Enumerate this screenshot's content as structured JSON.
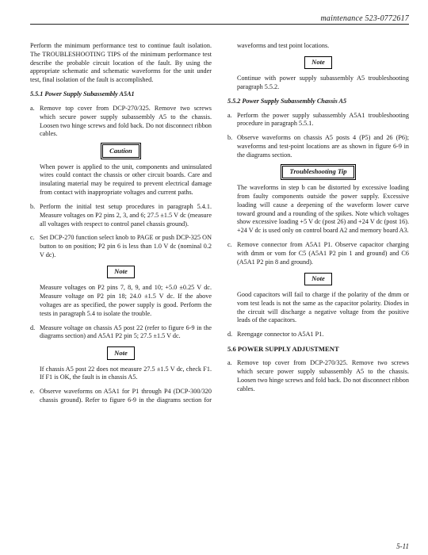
{
  "header": "maintenance 523-0772617",
  "page_number": "5-11",
  "intro": "Perform the minimum performance test to continue fault isolation. The TROUBLESHOOTING TIPS of the minimum performance test describe the probable circuit location of the fault. By using the appropriate schematic and schematic waveforms for the unit under test, final isolation of the fault is accomplished.",
  "sec551": {
    "title": "5.5.1 Power Supply Subassembly A5A1",
    "a": "Remove top cover from DCP-270/325. Remove two screws which secure power supply subassembly A5 to the chassis. Loosen two hinge screws and fold back. Do not disconnect ribbon cables.",
    "caution_label": "Caution",
    "caution_text": "When power is applied to the unit, components and uninsulated wires could contact the chassis or other circuit boards. Care and insulating material may be required to prevent electrical damage from contact with inappropriate voltages and current paths.",
    "b": "Perform the initial test setup procedures in paragraph 5.4.1. Measure voltages on P2 pins 2, 3, and 6; 27.5 ±1.5 V dc (measure all voltages with respect to control panel chassis ground).",
    "c": "Set DCP-270 function select knob to PAGE or push DCP-325 ON button to on position; P2 pin 6 is less than 1.0 V dc (nominal 0.2 V dc).",
    "note1_label": "Note",
    "note1_text": "Measure voltages on P2 pins 7, 8, 9, and 10; +5.0 ±0.25 V dc. Measure voltage on P2 pin 18; 24.0 ±1.5 V dc. If the above voltages are as specified, the power supply is good. Perform the tests in paragraph 5.4 to isolate the trouble.",
    "d": "Measure voltage on chassis A5 post 22 (refer to figure 6-9 in the diagrams section) and A5A1 P2 pin 5; 27.5 ±1.5 V dc.",
    "note2_label": "Note",
    "note2_text": "If chassis A5 post 22 does not measure 27.5 ±1.5 V dc, check F1. If F1 is OK, the fault is in chassis A5.",
    "e": "Observe waveforms on A5A1 for P1 through P4 (DCP-300/320 chassis ground). Refer to figure 6-9 in the diagrams section for waveforms and test point locations.",
    "note3_label": "Note",
    "note3_text": "Continue with power supply subassembly A5 troubleshooting paragraph 5.5.2."
  },
  "sec552": {
    "title": "5.5.2 Power Supply Subassembly Chassis A5",
    "a": "Perform the power supply subassembly A5A1 troubleshooting procedure in paragraph 5.5.1.",
    "b": "Observe waveforms on chassis A5 posts 4 (P5) and 26 (P6); waveforms and test-point locations are as shown in figure 6-9 in the diagrams section.",
    "tip_label": "Troubleshooting Tip",
    "tip_text": "The waveforms in step b can be distorted by excessive loading from faulty components outside the power supply. Excessive loading will cause a deepening of the waveform lower curve toward ground and a rounding of the spikes. Note which voltages show excessive loading +5 V dc (post 26) and +24 V dc (post 16). +24 V dc is used only on control board A2 and memory board A3.",
    "c": "Remove connector from A5A1 P1. Observe capacitor charging with dmm or vom for C5 (A5A1 P2 pin 1 and ground) and C6 (A5A1 P2 pin 8 and ground).",
    "note_label": "Note",
    "note_text": "Good capacitors will fail to charge if the polarity of the dmm or vom test leads is not the same as the capacitor polarity. Diodes in the circuit will discharge a negative voltage from the positive leads of the capacitors.",
    "d": "Reengage connector to A5A1 P1."
  },
  "sec56": {
    "title": "5.6 POWER SUPPLY ADJUSTMENT",
    "a": "Remove top cover from DCP-270/325. Remove two screws which secure power supply subassembly A5 to the chassis. Loosen two hinge screws and fold back. Do not disconnect ribbon cables."
  }
}
